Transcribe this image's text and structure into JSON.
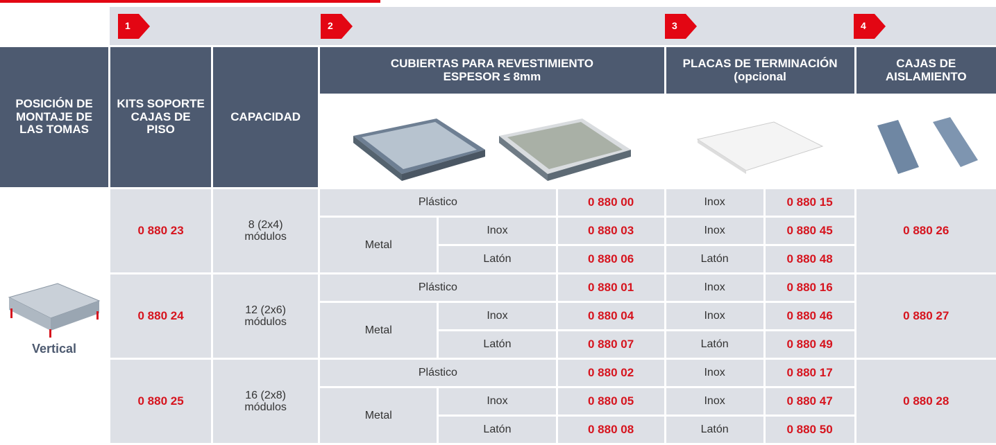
{
  "steps": [
    "1",
    "2",
    "3",
    "4"
  ],
  "header": {
    "position": "POSICIÓN DE\nMONTAJE DE\nLAS TOMAS",
    "kits": "KITS SOPORTE\nCAJAS DE\nPISO",
    "capacity": "CAPACIDAD",
    "covers": "CUBIERTAS PARA REVESTIMIENTO\nESPESOR ≤ 8mm",
    "plates": "PLACAS DE TERMINACIÓN\n(opcional",
    "boxes": "CAJAS DE\nAISLAMIENTO"
  },
  "position_label": "Vertical",
  "groups": [
    {
      "kit": "0 880 23",
      "capacity": "8 (2x4)\nmódulos",
      "box": "0 880 26",
      "metal": "Metal",
      "rows": [
        {
          "cover": "Plástico",
          "cover_code": "0 880 00",
          "plate": "Inox",
          "plate_code": "0 880 15"
        },
        {
          "cover": "Inox",
          "cover_code": "0 880 03",
          "plate": "Inox",
          "plate_code": "0 880 45"
        },
        {
          "cover": "Latón",
          "cover_code": "0 880 06",
          "plate": "Latón",
          "plate_code": "0 880 48"
        }
      ]
    },
    {
      "kit": "0 880 24",
      "capacity": "12 (2x6)\nmódulos",
      "box": "0 880 27",
      "metal": "Metal",
      "rows": [
        {
          "cover": "Plástico",
          "cover_code": "0 880 01",
          "plate": "Inox",
          "plate_code": "0 880 16"
        },
        {
          "cover": "Inox",
          "cover_code": "0 880 04",
          "plate": "Inox",
          "plate_code": "0 880 46"
        },
        {
          "cover": "Latón",
          "cover_code": "0 880 07",
          "plate": "Latón",
          "plate_code": "0 880 49"
        }
      ]
    },
    {
      "kit": "0 880 25",
      "capacity": "16 (2x8)\nmódulos",
      "box": "0 880 28",
      "metal": "Metal",
      "rows": [
        {
          "cover": "Plástico",
          "cover_code": "0 880 02",
          "plate": "Inox",
          "plate_code": "0 880 17"
        },
        {
          "cover": "Inox",
          "cover_code": "0 880 05",
          "plate": "Inox",
          "plate_code": "0 880 47"
        },
        {
          "cover": "Latón",
          "cover_code": "0 880 08",
          "plate": "Latón",
          "plate_code": "0 880 50"
        }
      ]
    }
  ]
}
